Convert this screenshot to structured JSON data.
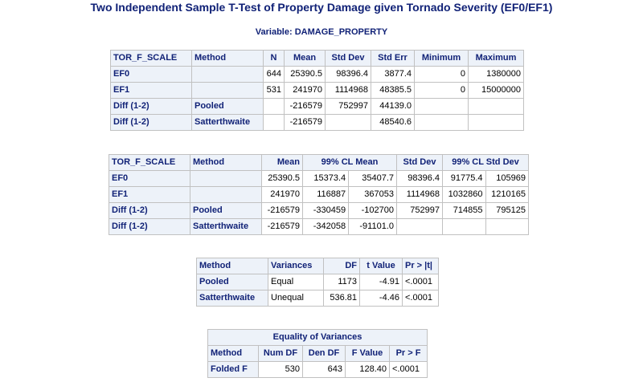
{
  "title": "Two Independent Sample T-Test of Property Damage given Tornado Severity (EF0/EF1)",
  "subtitle": "Variable:  DAMAGE_PROPERTY",
  "table1": {
    "headers": [
      "TOR_F_SCALE",
      "Method",
      "N",
      "Mean",
      "Std Dev",
      "Std Err",
      "Minimum",
      "Maximum"
    ],
    "rows": [
      {
        "group": "EF0",
        "method": "",
        "n": "644",
        "mean": "25390.5",
        "std_dev": "98396.4",
        "std_err": "3877.4",
        "minimum": "0",
        "maximum": "1380000"
      },
      {
        "group": "EF1",
        "method": "",
        "n": "531",
        "mean": "241970",
        "std_dev": "1114968",
        "std_err": "48385.5",
        "minimum": "0",
        "maximum": "15000000"
      },
      {
        "group": "Diff (1-2)",
        "method": "Pooled",
        "n": "",
        "mean": "-216579",
        "std_dev": "752997",
        "std_err": "44139.0",
        "minimum": "",
        "maximum": ""
      },
      {
        "group": "Diff (1-2)",
        "method": "Satterthwaite",
        "n": "",
        "mean": "-216579",
        "std_dev": "",
        "std_err": "48540.6",
        "minimum": "",
        "maximum": ""
      }
    ]
  },
  "table2": {
    "headers": [
      "TOR_F_SCALE",
      "Method",
      "Mean",
      "99% CL Mean",
      "Std Dev",
      "99% CL Std Dev"
    ],
    "rows": [
      {
        "group": "EF0",
        "method": "",
        "mean": "25390.5",
        "cl_mean_low": "15373.4",
        "cl_mean_high": "35407.7",
        "std_dev": "98396.4",
        "cl_sd_low": "91775.4",
        "cl_sd_high": "105969"
      },
      {
        "group": "EF1",
        "method": "",
        "mean": "241970",
        "cl_mean_low": "116887",
        "cl_mean_high": "367053",
        "std_dev": "1114968",
        "cl_sd_low": "1032860",
        "cl_sd_high": "1210165"
      },
      {
        "group": "Diff (1-2)",
        "method": "Pooled",
        "mean": "-216579",
        "cl_mean_low": "-330459",
        "cl_mean_high": "-102700",
        "std_dev": "752997",
        "cl_sd_low": "714855",
        "cl_sd_high": "795125"
      },
      {
        "group": "Diff (1-2)",
        "method": "Satterthwaite",
        "mean": "-216579",
        "cl_mean_low": "-342058",
        "cl_mean_high": "-91101.0",
        "std_dev": "",
        "cl_sd_low": "",
        "cl_sd_high": ""
      }
    ]
  },
  "table3": {
    "headers": [
      "Method",
      "Variances",
      "DF",
      "t Value",
      "Pr > |t|"
    ],
    "rows": [
      {
        "method": "Pooled",
        "variances": "Equal",
        "df": "1173",
        "t_value": "-4.91",
        "p": "<.0001"
      },
      {
        "method": "Satterthwaite",
        "variances": "Unequal",
        "df": "536.81",
        "t_value": "-4.46",
        "p": "<.0001"
      }
    ]
  },
  "table4": {
    "caption": "Equality of Variances",
    "headers": [
      "Method",
      "Num DF",
      "Den DF",
      "F Value",
      "Pr > F"
    ],
    "rows": [
      {
        "method": "Folded F",
        "num_df": "530",
        "den_df": "643",
        "f_value": "128.40",
        "p": "<.0001"
      }
    ]
  },
  "colors": {
    "header_text": "#112277",
    "header_bg": "#edf2f9",
    "grid": "#c1c1c1"
  }
}
